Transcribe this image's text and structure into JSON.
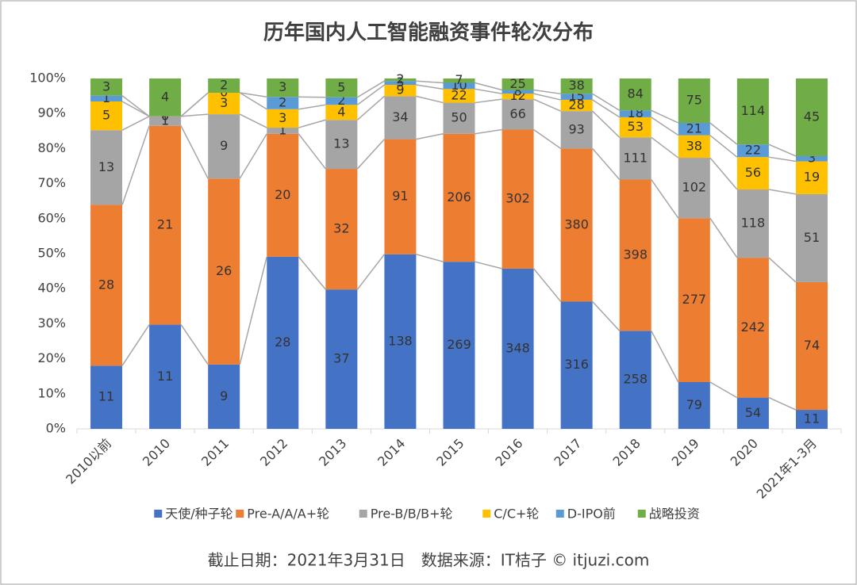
{
  "chart_data": {
    "type": "bar100",
    "title": "历年国内人工智能融资事件轮次分布",
    "note": "截止日期：2021年3月31日　数据来源：IT桔子 © itjuzi.com",
    "categories": [
      "2010以前",
      "2010",
      "2011",
      "2012",
      "2013",
      "2014",
      "2015",
      "2016",
      "2017",
      "2018",
      "2019",
      "2020",
      "2021年1-3月"
    ],
    "series": [
      {
        "name": "天使/种子轮",
        "color": "#4472c4",
        "values": [
          11,
          11,
          9,
          28,
          37,
          138,
          269,
          348,
          316,
          258,
          79,
          54,
          11
        ]
      },
      {
        "name": "Pre-A/A/A+轮",
        "color": "#ed7d31",
        "values": [
          28,
          21,
          26,
          20,
          32,
          91,
          206,
          302,
          380,
          398,
          277,
          242,
          74
        ]
      },
      {
        "name": "Pre-B/B/B+轮",
        "color": "#a5a5a5",
        "values": [
          13,
          1,
          9,
          1,
          13,
          34,
          50,
          66,
          93,
          111,
          102,
          118,
          51
        ]
      },
      {
        "name": "C/C+轮",
        "color": "#ffc000",
        "values": [
          5,
          0,
          3,
          3,
          4,
          9,
          22,
          12,
          28,
          53,
          38,
          56,
          19
        ]
      },
      {
        "name": "D-IPO前",
        "color": "#5b9bd5",
        "values": [
          1,
          0,
          0,
          2,
          2,
          3,
          10,
          8,
          15,
          18,
          21,
          22,
          3
        ]
      },
      {
        "name": "战略投资",
        "color": "#70ad47",
        "values": [
          3,
          4,
          2,
          3,
          5,
          2,
          7,
          25,
          38,
          84,
          75,
          114,
          45
        ]
      }
    ],
    "ylim": [
      0,
      100
    ],
    "yticks": [
      {
        "value": 0,
        "label": "0%"
      },
      {
        "value": 10,
        "label": "10%"
      },
      {
        "value": 20,
        "label": "20%"
      },
      {
        "value": 30,
        "label": "30%"
      },
      {
        "value": 40,
        "label": "40%"
      },
      {
        "value": 50,
        "label": "50%"
      },
      {
        "value": 60,
        "label": "60%"
      },
      {
        "value": 70,
        "label": "70%"
      },
      {
        "value": 80,
        "label": "80%"
      },
      {
        "value": 90,
        "label": "90%"
      },
      {
        "value": 100,
        "label": "100%"
      }
    ],
    "legend": "bottom"
  }
}
